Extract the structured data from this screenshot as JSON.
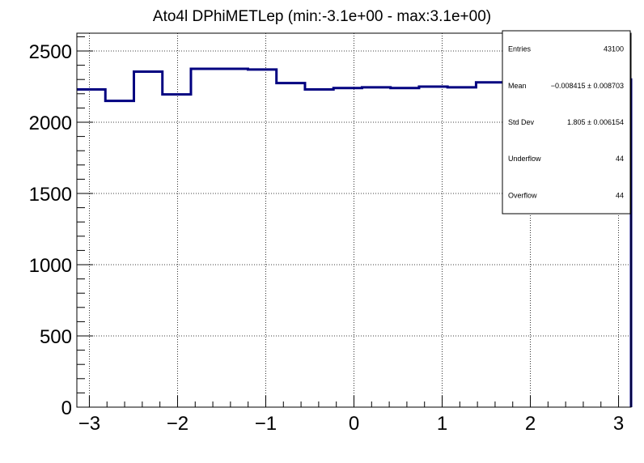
{
  "chart_data": {
    "type": "histogram",
    "title": "Ato4l DPhiMETLep (min:-3.1e+00 - max:3.1e+00)",
    "xlim": [
      -3.14159,
      3.14159
    ],
    "ylim": [
      0,
      2625
    ],
    "grid": true,
    "bin_edges": [
      -3.14159,
      -2.81831,
      -2.49503,
      -2.17175,
      -1.84847,
      -1.52519,
      -1.20191,
      -0.87863,
      -0.55535,
      -0.23207,
      0.09121,
      0.41449,
      0.73777,
      1.06105,
      1.38433,
      1.70761,
      3.14159
    ],
    "values": [
      2230,
      2150,
      2355,
      2195,
      2375,
      2375,
      2370,
      2275,
      2230,
      2240,
      2245,
      2240,
      2250,
      2245,
      2280,
      2300
    ],
    "line_color": "#000080",
    "x_ticks": [
      {
        "value": -3,
        "label": "−3"
      },
      {
        "value": -2,
        "label": "−2"
      },
      {
        "value": -1,
        "label": "−1"
      },
      {
        "value": 0,
        "label": "0"
      },
      {
        "value": 1,
        "label": "1"
      },
      {
        "value": 2,
        "label": "2"
      },
      {
        "value": 3,
        "label": "3"
      }
    ],
    "y_ticks": [
      {
        "value": 0,
        "label": "0"
      },
      {
        "value": 500,
        "label": "500"
      },
      {
        "value": 1000,
        "label": "1000"
      },
      {
        "value": 1500,
        "label": "1500"
      },
      {
        "value": 2000,
        "label": "2000"
      },
      {
        "value": 2500,
        "label": "2500"
      }
    ],
    "stats": [
      {
        "label": "Entries",
        "value": "43100"
      },
      {
        "label": "Mean",
        "value": "−0.008415 ± 0.008703"
      },
      {
        "label": "Std Dev",
        "value": "1.805 ± 0.006154"
      },
      {
        "label": "Underflow",
        "value": "44"
      },
      {
        "label": "Overflow",
        "value": "44"
      }
    ]
  }
}
